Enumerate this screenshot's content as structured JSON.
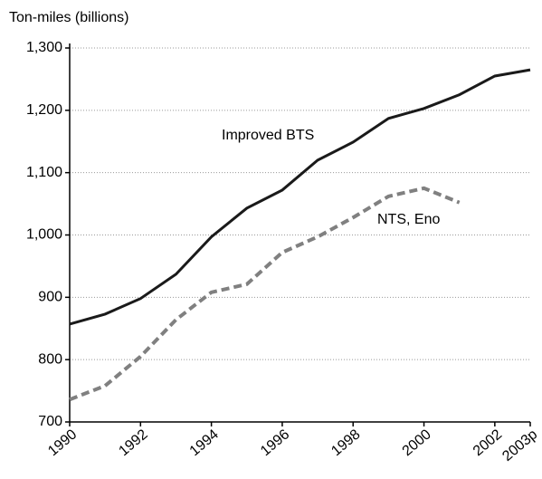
{
  "chart_data": {
    "type": "line",
    "y_label": "Ton-miles (billions)",
    "x": [
      1990,
      1991,
      1992,
      1993,
      1994,
      1995,
      1996,
      1997,
      1998,
      1999,
      2000,
      2001,
      2002,
      2003
    ],
    "series": [
      {
        "name": "Improved BTS",
        "color": "#1a1a1a",
        "style": "solid",
        "values": [
          857,
          873,
          898,
          937,
          997,
          1043,
          1072,
          1120,
          1149,
          1187,
          1203,
          1225,
          1255,
          1265
        ]
      },
      {
        "name": "NTS, Eno",
        "color": "#808080",
        "style": "dashed",
        "values": [
          736,
          758,
          805,
          864,
          908,
          921,
          972,
          997,
          1028,
          1062,
          1075,
          1052,
          null,
          null
        ]
      }
    ],
    "xlim": [
      1990,
      2003
    ],
    "xticks": [
      1990,
      1992,
      1994,
      1996,
      1998,
      2000,
      2002,
      {
        "value": 2003,
        "label": "2003p"
      }
    ],
    "ylim": [
      700,
      1300
    ],
    "yticks": [
      {
        "value": 700,
        "label": "700"
      },
      {
        "value": 800,
        "label": "800"
      },
      {
        "value": 900,
        "label": "900"
      },
      {
        "value": 1000,
        "label": "1,000"
      },
      {
        "value": 1100,
        "label": "1,100"
      },
      {
        "value": 1200,
        "label": "1,200"
      },
      {
        "value": 1300,
        "label": "1,300"
      }
    ],
    "grid": true
  }
}
